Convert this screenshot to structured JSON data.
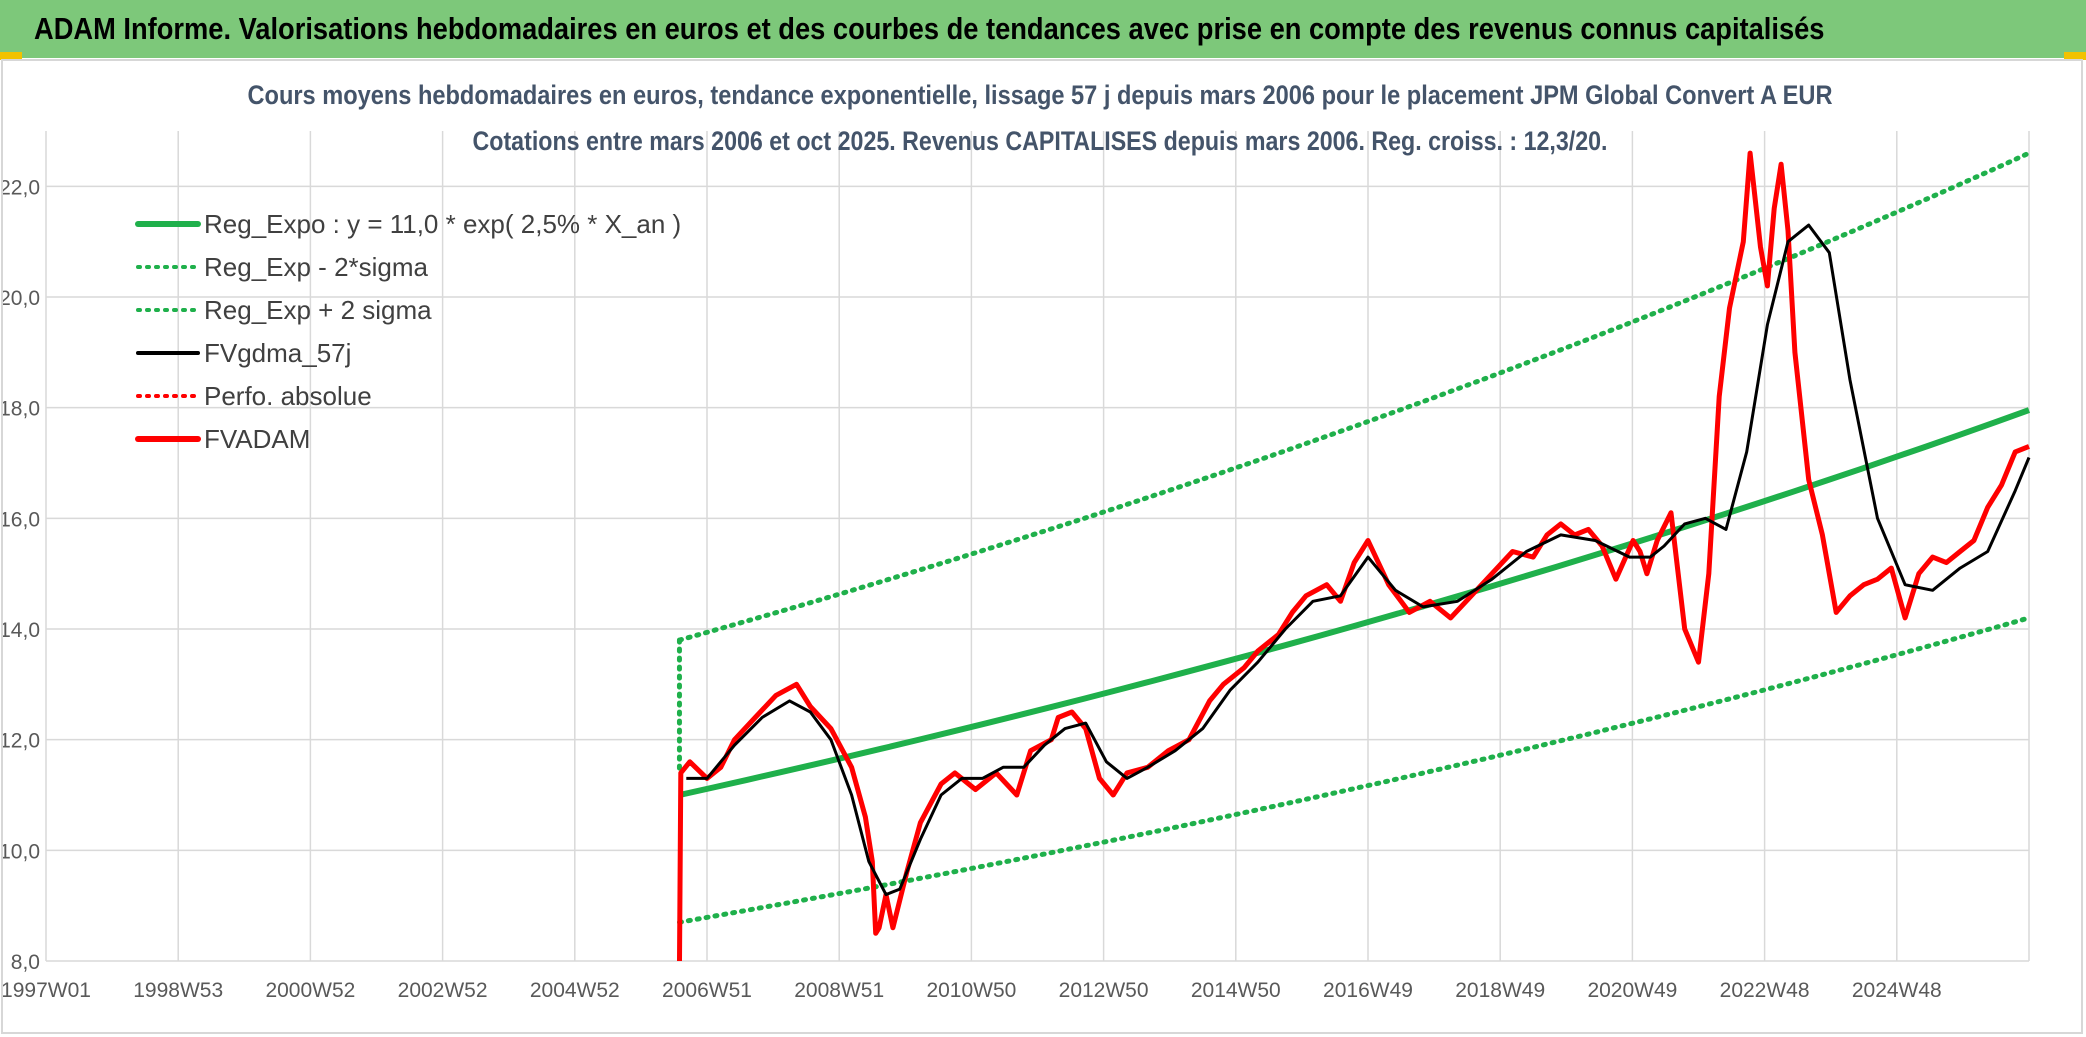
{
  "header": {
    "title": "ADAM Informe. Valorisations hebdomadaires en euros et des courbes de tendances avec prise en compte des revenus connus capitalisés"
  },
  "colors": {
    "header_bg": "#7dc87a",
    "regression": "#1fb04b",
    "band": "#1fb04b",
    "smoothed": "#000000",
    "price": "#ff0000",
    "grid": "#d9d9d9"
  },
  "chart_data": {
    "type": "line",
    "title": "Cours moyens hebdomadaires en euros, tendance exponentielle, lissage 57 j depuis mars 2006 pour le placement JPM Global Convert A EUR",
    "subtitle": "Cotations entre mars 2006 et oct 2025. Revenus CAPITALISES depuis mars 2006. Reg. croiss. : 12,3/20.",
    "x_tick_labels": [
      "1997W01",
      "1998W53",
      "2000W52",
      "2002W52",
      "2004W52",
      "2006W51",
      "2008W51",
      "2010W50",
      "2012W50",
      "2014W50",
      "2016W49",
      "2018W49",
      "2020W49",
      "2022W48",
      "2024W48"
    ],
    "x_range_years": [
      1997.0,
      2025.8
    ],
    "y_range": [
      8.0,
      23.0
    ],
    "y_tick_labels": [
      "8,0",
      "10,0",
      "12,0",
      "14,0",
      "16,0",
      "18,0",
      "20,0",
      "22,0"
    ],
    "y_ticks": [
      8,
      10,
      12,
      14,
      16,
      18,
      20,
      22
    ],
    "grid": true,
    "legend_position": "top-left",
    "legend": [
      {
        "label": "Reg_Expo : y = 11,0 * exp( 2,5% *  X_an )",
        "style": "solid-thick",
        "color": "#1fb04b"
      },
      {
        "label": "Reg_Exp - 2*sigma",
        "style": "dotted",
        "color": "#1fb04b"
      },
      {
        "label": "Reg_Exp + 2 sigma",
        "style": "dotted",
        "color": "#1fb04b"
      },
      {
        "label": "FVgdma_57j",
        "style": "solid",
        "color": "#000000"
      },
      {
        "label": "Perfo. absolue",
        "style": "dotted",
        "color": "#ff0000"
      },
      {
        "label": "FVADAM",
        "style": "solid-thick",
        "color": "#ff0000"
      }
    ],
    "regression": {
      "start_year": 2006.2,
      "end_year": 2025.8,
      "a": 11.0,
      "rate": 0.025
    },
    "band_lower": [
      [
        2006.2,
        8.7
      ],
      [
        2025.8,
        14.2
      ]
    ],
    "band_upper": [
      [
        2006.2,
        13.8
      ],
      [
        2025.8,
        22.6
      ]
    ],
    "series": [
      {
        "name": "FVADAM",
        "x": [
          2006.2,
          2006.22,
          2006.35,
          2006.6,
          2006.8,
          2007.0,
          2007.3,
          2007.6,
          2007.9,
          2008.1,
          2008.4,
          2008.7,
          2008.9,
          2009.0,
          2009.05,
          2009.1,
          2009.2,
          2009.3,
          2009.5,
          2009.7,
          2010.0,
          2010.2,
          2010.5,
          2010.8,
          2011.1,
          2011.3,
          2011.6,
          2011.7,
          2011.9,
          2012.1,
          2012.3,
          2012.5,
          2012.7,
          2013.0,
          2013.3,
          2013.6,
          2013.9,
          2014.1,
          2014.4,
          2014.6,
          2014.9,
          2015.1,
          2015.3,
          2015.6,
          2015.8,
          2016.0,
          2016.2,
          2016.5,
          2016.8,
          2017.1,
          2017.4,
          2017.7,
          2018.0,
          2018.3,
          2018.6,
          2018.8,
          2019.0,
          2019.2,
          2019.4,
          2019.6,
          2019.8,
          2020.05,
          2020.15,
          2020.25,
          2020.4,
          2020.6,
          2020.8,
          2021.0,
          2021.15,
          2021.3,
          2021.45,
          2021.55,
          2021.65,
          2021.75,
          2021.9,
          2022.0,
          2022.1,
          2022.2,
          2022.3,
          2022.4,
          2022.6,
          2022.8,
          2023.0,
          2023.2,
          2023.4,
          2023.6,
          2023.8,
          2024.0,
          2024.2,
          2024.4,
          2024.6,
          2024.8,
          2025.0,
          2025.2,
          2025.4,
          2025.6,
          2025.8
        ],
        "y": [
          8.0,
          11.4,
          11.6,
          11.3,
          11.5,
          12.0,
          12.4,
          12.8,
          13.0,
          12.6,
          12.2,
          11.5,
          10.6,
          9.8,
          8.5,
          8.6,
          9.2,
          8.6,
          9.6,
          10.5,
          11.2,
          11.4,
          11.1,
          11.4,
          11.0,
          11.8,
          12.0,
          12.4,
          12.5,
          12.2,
          11.3,
          11.0,
          11.4,
          11.5,
          11.8,
          12.0,
          12.7,
          13.0,
          13.3,
          13.6,
          13.9,
          14.3,
          14.6,
          14.8,
          14.5,
          15.2,
          15.6,
          14.8,
          14.3,
          14.5,
          14.2,
          14.6,
          15.0,
          15.4,
          15.3,
          15.7,
          15.9,
          15.7,
          15.8,
          15.5,
          14.9,
          15.6,
          15.4,
          15.0,
          15.6,
          16.1,
          14.0,
          13.4,
          15.0,
          18.2,
          19.8,
          20.4,
          21.0,
          22.6,
          20.9,
          20.2,
          21.6,
          22.4,
          21.2,
          19.0,
          16.7,
          15.7,
          14.3,
          14.6,
          14.8,
          14.9,
          15.1,
          14.2,
          15.0,
          15.3,
          15.2,
          15.4,
          15.6,
          16.2,
          16.6,
          17.2,
          17.3
        ]
      },
      {
        "name": "FVgdma_57j",
        "x": [
          2006.3,
          2006.6,
          2007.0,
          2007.4,
          2007.8,
          2008.1,
          2008.4,
          2008.7,
          2008.95,
          2009.2,
          2009.4,
          2009.7,
          2010.0,
          2010.3,
          2010.6,
          2010.9,
          2011.2,
          2011.5,
          2011.8,
          2012.1,
          2012.4,
          2012.7,
          2013.0,
          2013.4,
          2013.8,
          2014.2,
          2014.6,
          2015.0,
          2015.4,
          2015.8,
          2016.2,
          2016.6,
          2017.0,
          2017.5,
          2018.0,
          2018.5,
          2019.0,
          2019.5,
          2020.0,
          2020.3,
          2020.5,
          2020.8,
          2021.1,
          2021.4,
          2021.7,
          2022.0,
          2022.3,
          2022.6,
          2022.9,
          2023.2,
          2023.6,
          2024.0,
          2024.4,
          2024.8,
          2025.2,
          2025.6,
          2025.8
        ],
        "y": [
          11.3,
          11.3,
          11.9,
          12.4,
          12.7,
          12.5,
          12.0,
          11.0,
          9.8,
          9.2,
          9.3,
          10.2,
          11.0,
          11.3,
          11.3,
          11.5,
          11.5,
          11.9,
          12.2,
          12.3,
          11.6,
          11.3,
          11.5,
          11.8,
          12.2,
          12.9,
          13.4,
          14.0,
          14.5,
          14.6,
          15.3,
          14.7,
          14.4,
          14.5,
          14.9,
          15.4,
          15.7,
          15.6,
          15.3,
          15.3,
          15.5,
          15.9,
          16.0,
          15.8,
          17.2,
          19.5,
          21.0,
          21.3,
          20.8,
          18.5,
          16.0,
          14.8,
          14.7,
          15.1,
          15.4,
          16.5,
          17.1
        ]
      }
    ]
  }
}
